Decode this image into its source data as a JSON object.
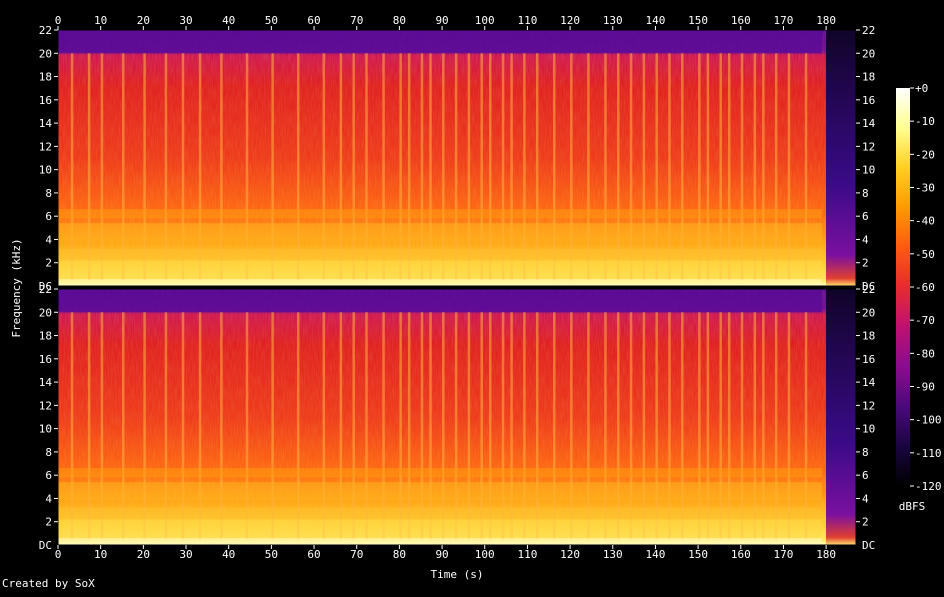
{
  "footer": "Created by SoX",
  "chart_data": {
    "type": "heatmap",
    "title": "",
    "xlabel": "Time (s)",
    "ylabel": "Frequency (kHz)",
    "colorbar_label": "dBFS",
    "xlim": [
      0,
      187
    ],
    "ylim": [
      0,
      22
    ],
    "x_ticks": [
      "0",
      "10",
      "20",
      "30",
      "40",
      "50",
      "60",
      "70",
      "80",
      "90",
      "100",
      "110",
      "120",
      "130",
      "140",
      "150",
      "160",
      "170",
      "180"
    ],
    "y_ticks": [
      "22",
      "20",
      "18",
      "16",
      "14",
      "12",
      "10",
      "8",
      "6",
      "4",
      "2"
    ],
    "y_dc_label": "DC",
    "colorbar_ticks": [
      "+0",
      "-10",
      "-20",
      "-30",
      "-40",
      "-50",
      "-60",
      "-70",
      "-80",
      "-90",
      "-100",
      "-110",
      "-120"
    ],
    "colorbar_range": [
      -120,
      0
    ],
    "channels": [
      "channel-1",
      "channel-2"
    ],
    "audio_end_seconds": 179,
    "lowpass_cutoff_khz": 20,
    "colors": {
      "background": "#000000",
      "palette": [
        "#000000",
        "#1a0540",
        "#4a0a78",
        "#8a0c8c",
        "#c01070",
        "#e82a30",
        "#ff5a10",
        "#ff9a00",
        "#ffd020",
        "#ffff90",
        "#ffffff"
      ]
    }
  }
}
